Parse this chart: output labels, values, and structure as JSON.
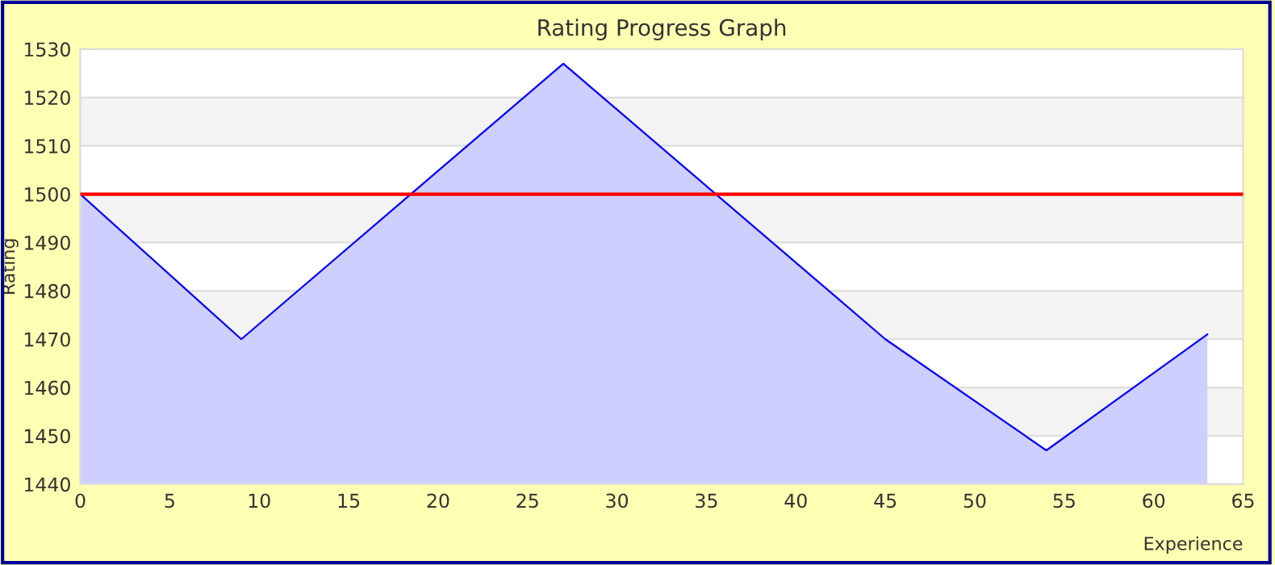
{
  "chart_data": {
    "type": "area",
    "title": "Rating Progress Graph",
    "xlabel": "Experience",
    "ylabel": "Rating",
    "x": [
      0,
      9,
      27,
      45,
      54,
      63
    ],
    "series": [
      {
        "color": "#0000ff",
        "values": [
          1500,
          1470,
          1527,
          1470,
          1447,
          1471
        ]
      }
    ],
    "xlim": [
      0,
      65
    ],
    "xticks": [
      0,
      5,
      10,
      15,
      20,
      25,
      30,
      35,
      40,
      45,
      50,
      55,
      60,
      65
    ],
    "ylim": [
      1440,
      1530
    ],
    "yticks": [
      1440,
      1450,
      1460,
      1470,
      1480,
      1490,
      1500,
      1510,
      1520,
      1530
    ],
    "ref_lines": [
      {
        "axis": "y",
        "value": 1500,
        "color": "#ff0000"
      }
    ],
    "grid": "y",
    "marker": "none",
    "line_style": "solid"
  }
}
